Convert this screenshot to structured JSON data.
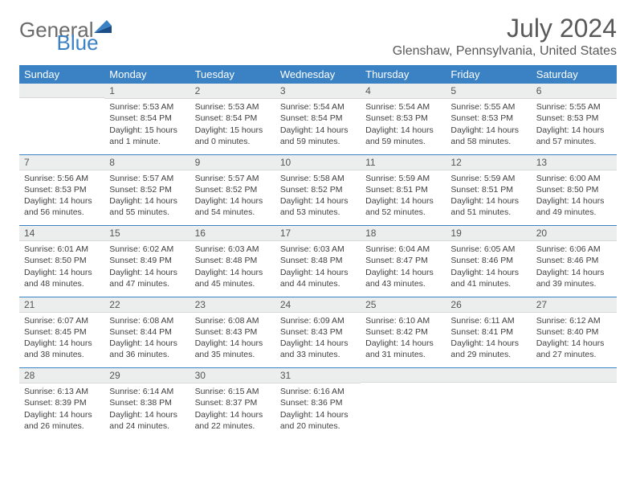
{
  "logo": {
    "text1": "General",
    "text2": "Blue",
    "text1_color": "#6b6b6b",
    "text2_color": "#3b82c4"
  },
  "title": "July 2024",
  "location": "Glenshaw, Pennsylvania, United States",
  "colors": {
    "header_bg": "#3b82c4",
    "header_text": "#ffffff",
    "daynum_bg": "#eceded",
    "text": "#3f3f3f",
    "title_color": "#595959",
    "rule": "#3b82c4"
  },
  "dow": [
    "Sunday",
    "Monday",
    "Tuesday",
    "Wednesday",
    "Thursday",
    "Friday",
    "Saturday"
  ],
  "weeks": [
    [
      null,
      {
        "n": "1",
        "sr": "Sunrise: 5:53 AM",
        "ss": "Sunset: 8:54 PM",
        "dl": "Daylight: 15 hours and 1 minute."
      },
      {
        "n": "2",
        "sr": "Sunrise: 5:53 AM",
        "ss": "Sunset: 8:54 PM",
        "dl": "Daylight: 15 hours and 0 minutes."
      },
      {
        "n": "3",
        "sr": "Sunrise: 5:54 AM",
        "ss": "Sunset: 8:54 PM",
        "dl": "Daylight: 14 hours and 59 minutes."
      },
      {
        "n": "4",
        "sr": "Sunrise: 5:54 AM",
        "ss": "Sunset: 8:53 PM",
        "dl": "Daylight: 14 hours and 59 minutes."
      },
      {
        "n": "5",
        "sr": "Sunrise: 5:55 AM",
        "ss": "Sunset: 8:53 PM",
        "dl": "Daylight: 14 hours and 58 minutes."
      },
      {
        "n": "6",
        "sr": "Sunrise: 5:55 AM",
        "ss": "Sunset: 8:53 PM",
        "dl": "Daylight: 14 hours and 57 minutes."
      }
    ],
    [
      {
        "n": "7",
        "sr": "Sunrise: 5:56 AM",
        "ss": "Sunset: 8:53 PM",
        "dl": "Daylight: 14 hours and 56 minutes."
      },
      {
        "n": "8",
        "sr": "Sunrise: 5:57 AM",
        "ss": "Sunset: 8:52 PM",
        "dl": "Daylight: 14 hours and 55 minutes."
      },
      {
        "n": "9",
        "sr": "Sunrise: 5:57 AM",
        "ss": "Sunset: 8:52 PM",
        "dl": "Daylight: 14 hours and 54 minutes."
      },
      {
        "n": "10",
        "sr": "Sunrise: 5:58 AM",
        "ss": "Sunset: 8:52 PM",
        "dl": "Daylight: 14 hours and 53 minutes."
      },
      {
        "n": "11",
        "sr": "Sunrise: 5:59 AM",
        "ss": "Sunset: 8:51 PM",
        "dl": "Daylight: 14 hours and 52 minutes."
      },
      {
        "n": "12",
        "sr": "Sunrise: 5:59 AM",
        "ss": "Sunset: 8:51 PM",
        "dl": "Daylight: 14 hours and 51 minutes."
      },
      {
        "n": "13",
        "sr": "Sunrise: 6:00 AM",
        "ss": "Sunset: 8:50 PM",
        "dl": "Daylight: 14 hours and 49 minutes."
      }
    ],
    [
      {
        "n": "14",
        "sr": "Sunrise: 6:01 AM",
        "ss": "Sunset: 8:50 PM",
        "dl": "Daylight: 14 hours and 48 minutes."
      },
      {
        "n": "15",
        "sr": "Sunrise: 6:02 AM",
        "ss": "Sunset: 8:49 PM",
        "dl": "Daylight: 14 hours and 47 minutes."
      },
      {
        "n": "16",
        "sr": "Sunrise: 6:03 AM",
        "ss": "Sunset: 8:48 PM",
        "dl": "Daylight: 14 hours and 45 minutes."
      },
      {
        "n": "17",
        "sr": "Sunrise: 6:03 AM",
        "ss": "Sunset: 8:48 PM",
        "dl": "Daylight: 14 hours and 44 minutes."
      },
      {
        "n": "18",
        "sr": "Sunrise: 6:04 AM",
        "ss": "Sunset: 8:47 PM",
        "dl": "Daylight: 14 hours and 43 minutes."
      },
      {
        "n": "19",
        "sr": "Sunrise: 6:05 AM",
        "ss": "Sunset: 8:46 PM",
        "dl": "Daylight: 14 hours and 41 minutes."
      },
      {
        "n": "20",
        "sr": "Sunrise: 6:06 AM",
        "ss": "Sunset: 8:46 PM",
        "dl": "Daylight: 14 hours and 39 minutes."
      }
    ],
    [
      {
        "n": "21",
        "sr": "Sunrise: 6:07 AM",
        "ss": "Sunset: 8:45 PM",
        "dl": "Daylight: 14 hours and 38 minutes."
      },
      {
        "n": "22",
        "sr": "Sunrise: 6:08 AM",
        "ss": "Sunset: 8:44 PM",
        "dl": "Daylight: 14 hours and 36 minutes."
      },
      {
        "n": "23",
        "sr": "Sunrise: 6:08 AM",
        "ss": "Sunset: 8:43 PM",
        "dl": "Daylight: 14 hours and 35 minutes."
      },
      {
        "n": "24",
        "sr": "Sunrise: 6:09 AM",
        "ss": "Sunset: 8:43 PM",
        "dl": "Daylight: 14 hours and 33 minutes."
      },
      {
        "n": "25",
        "sr": "Sunrise: 6:10 AM",
        "ss": "Sunset: 8:42 PM",
        "dl": "Daylight: 14 hours and 31 minutes."
      },
      {
        "n": "26",
        "sr": "Sunrise: 6:11 AM",
        "ss": "Sunset: 8:41 PM",
        "dl": "Daylight: 14 hours and 29 minutes."
      },
      {
        "n": "27",
        "sr": "Sunrise: 6:12 AM",
        "ss": "Sunset: 8:40 PM",
        "dl": "Daylight: 14 hours and 27 minutes."
      }
    ],
    [
      {
        "n": "28",
        "sr": "Sunrise: 6:13 AM",
        "ss": "Sunset: 8:39 PM",
        "dl": "Daylight: 14 hours and 26 minutes."
      },
      {
        "n": "29",
        "sr": "Sunrise: 6:14 AM",
        "ss": "Sunset: 8:38 PM",
        "dl": "Daylight: 14 hours and 24 minutes."
      },
      {
        "n": "30",
        "sr": "Sunrise: 6:15 AM",
        "ss": "Sunset: 8:37 PM",
        "dl": "Daylight: 14 hours and 22 minutes."
      },
      {
        "n": "31",
        "sr": "Sunrise: 6:16 AM",
        "ss": "Sunset: 8:36 PM",
        "dl": "Daylight: 14 hours and 20 minutes."
      },
      null,
      null,
      null
    ]
  ]
}
